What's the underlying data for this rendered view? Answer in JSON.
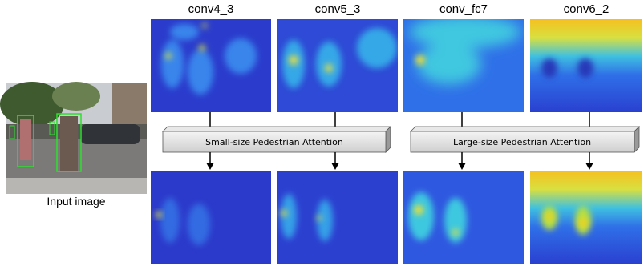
{
  "columns": [
    "conv4_3",
    "conv5_3",
    "conv_fc7",
    "conv6_2"
  ],
  "attention_modules": [
    "Small-size Pedestrian Attention",
    "Large-size Pedestrian Attention"
  ],
  "input_label": "Input image"
}
